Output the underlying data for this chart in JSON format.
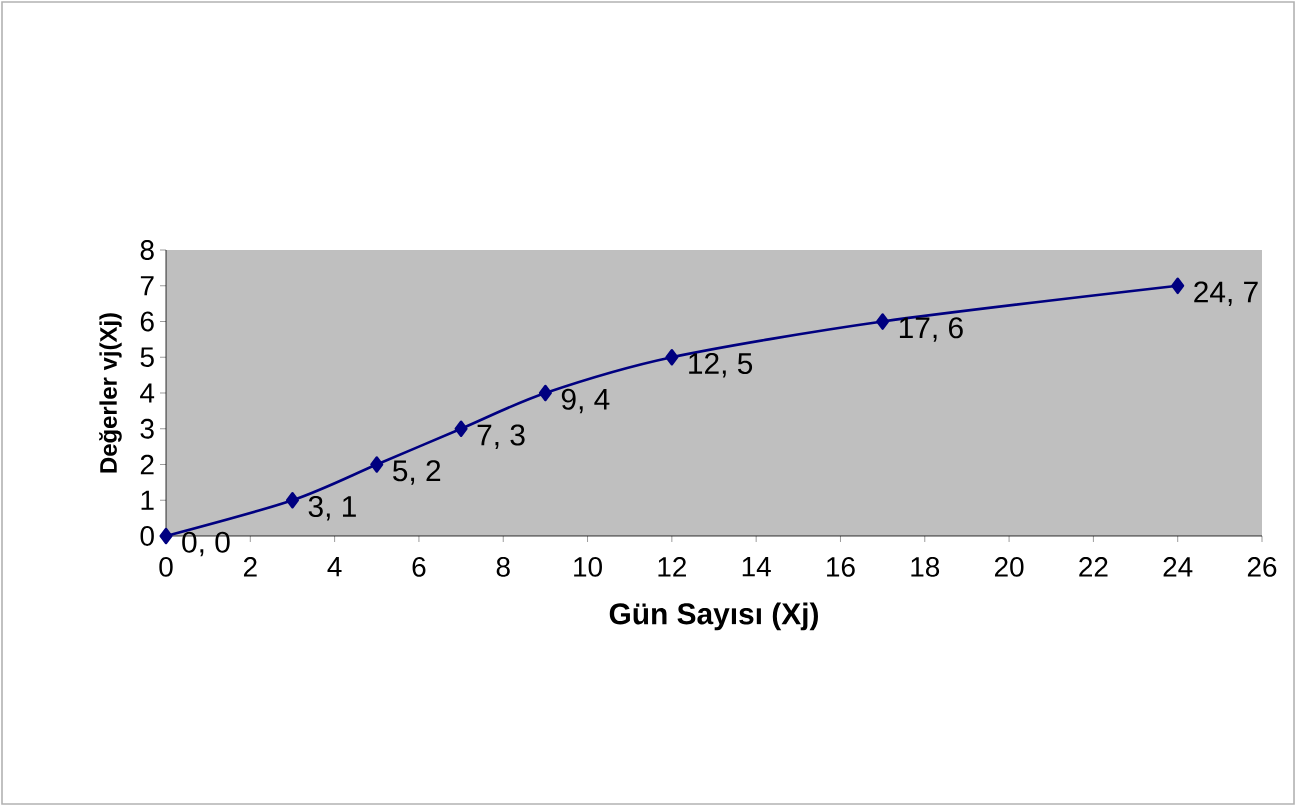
{
  "chart_data": {
    "type": "line",
    "xlabel": "Gün Sayısı (Xj)",
    "ylabel": "Değerler vj(Xj)",
    "x": [
      0,
      3,
      5,
      7,
      9,
      12,
      17,
      24
    ],
    "values": [
      0,
      1,
      2,
      3,
      4,
      5,
      6,
      7
    ],
    "value_labels": [
      "0, 0",
      "3, 1",
      "5, 2",
      "7, 3",
      "9, 4",
      "12, 5",
      "17, 6",
      "24, 7"
    ],
    "color": "#000080",
    "marker": "diamond",
    "line_style": "solid",
    "xlim": [
      0,
      26
    ],
    "xticks": [
      0,
      2,
      4,
      6,
      8,
      10,
      12,
      14,
      16,
      18,
      20,
      22,
      24,
      26
    ],
    "ylim": [
      0,
      8
    ],
    "yticks": [
      0,
      1,
      2,
      3,
      4,
      5,
      6,
      7,
      8
    ]
  }
}
